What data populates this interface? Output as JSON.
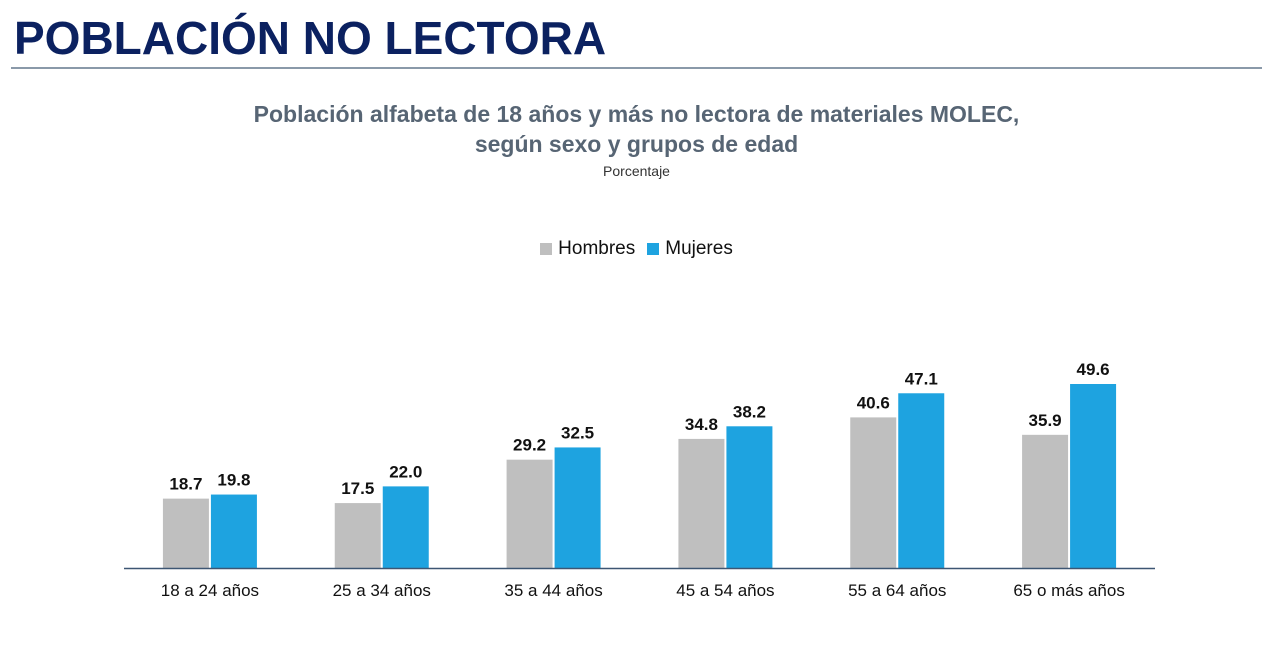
{
  "page": {
    "title": "POBLACIÓN NO LECTORA"
  },
  "chart_data": {
    "type": "bar",
    "title_line1": "Población alfabeta de 18 años y más no lectora de materiales MOLEC,",
    "title_line2": "según sexo y grupos de edad",
    "subtitle": "Porcentaje",
    "xlabel": "",
    "ylabel": "",
    "ylim": [
      0,
      55
    ],
    "grid": false,
    "legend_position": "top-center",
    "categories": [
      "18 a 24 años",
      "25 a 34 años",
      "35 a 44 años",
      "45 a 54 años",
      "55 a 64 años",
      "65 o más años"
    ],
    "series": [
      {
        "name": "Hombres",
        "color": "#bfbfbf",
        "values": [
          18.7,
          17.5,
          29.2,
          34.8,
          40.6,
          35.9
        ],
        "labels": [
          "18.7",
          "17.5",
          "29.2",
          "34.8",
          "40.6",
          "35.9"
        ]
      },
      {
        "name": "Mujeres",
        "color": "#1ea3e0",
        "values": [
          19.8,
          22.0,
          32.5,
          38.2,
          47.1,
          49.6
        ],
        "labels": [
          "19.8",
          "22.0",
          "32.5",
          "38.2",
          "47.1",
          "49.6"
        ]
      }
    ]
  }
}
